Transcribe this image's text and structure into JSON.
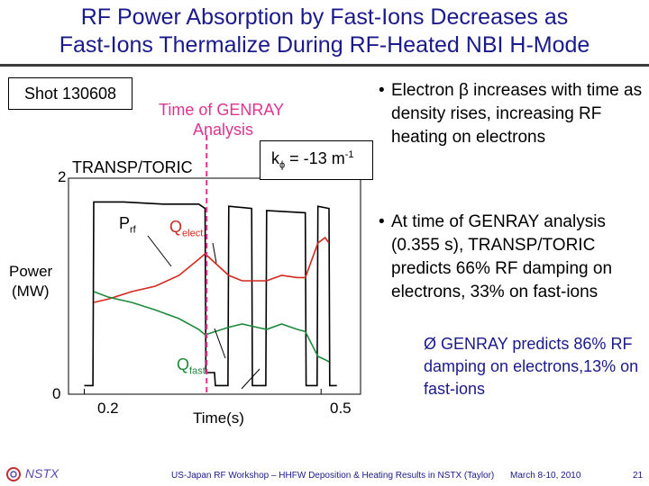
{
  "slide": {
    "title_line1": "RF Power Absorption by Fast-Ions Decreases as",
    "title_line2": "Fast-Ions Thermalize During RF-Heated NBI H-Mode",
    "shot_label": "Shot 130608",
    "genray_time_label_1": "Time of GENRAY",
    "genray_time_label_2": "Analysis",
    "transp_label": "TRANSP/TORIC",
    "k_label_k": "k",
    "k_label_phi": "ϕ",
    "k_label_value": " = -13 m",
    "k_label_exp": "-1",
    "prf_label": "P",
    "prf_sub": "rf",
    "qelect_label": "Q",
    "qelect_sub": "elect.",
    "qfast_label": "Q",
    "qfast_sub": "fast",
    "power_label_1": "Power",
    "power_label_2": "(MW)",
    "y_tick_top": "2",
    "y_tick_bottom": "0",
    "x_tick_left": "0.2",
    "x_tick_right": "0.5",
    "x_axis_label": "Time(s)",
    "bullet1_marker": "•",
    "bullet1": "Electron β increases with time as density rises, increasing RF heating on electrons",
    "bullet2_marker": "•",
    "bullet2": "At time of GENRAY analysis (0.355 s), TRANSP/TORIC predicts 66% RF damping on electrons, 33% on fast-ions",
    "bullet3_marker": "Ø",
    "bullet3": "GENRAY predicts 86% RF damping on electrons,13% on fast-ions",
    "footer_logo": "NSTX",
    "footer_center": "US-Japan RF Workshop – HHFW Deposition & Heating Results in NSTX (Taylor)",
    "footer_date": "March 8-10, 2010",
    "footer_page": "21"
  },
  "colors": {
    "title": "#1a1a8c",
    "prf": "#000000",
    "qelect": "#d2281e",
    "qfast": "#1f8a3c",
    "genray_marker": "#e0338f"
  },
  "chart_data": {
    "type": "line",
    "xlabel": "Time(s)",
    "ylabel": "Power (MW)",
    "xlim": [
      0.18,
      0.55
    ],
    "ylim": [
      0,
      2
    ],
    "x_ticks": [
      0.2,
      0.5
    ],
    "y_ticks": [
      0,
      2
    ],
    "genray_time": 0.355,
    "series": [
      {
        "name": "Prf",
        "color": "#000000",
        "x": [
          0.2,
          0.211,
          0.212,
          0.25,
          0.3,
          0.345,
          0.353,
          0.354,
          0.365,
          0.366,
          0.382,
          0.383,
          0.412,
          0.413,
          0.43,
          0.431,
          0.48,
          0.481,
          0.495,
          0.496,
          0.51,
          0.511,
          0.52
        ],
        "y": [
          0.08,
          0.08,
          1.78,
          1.78,
          1.76,
          1.76,
          1.72,
          0.2,
          0.2,
          0.08,
          0.08,
          1.74,
          1.72,
          0.08,
          0.08,
          1.7,
          1.68,
          0.08,
          0.08,
          1.74,
          1.72,
          0.08,
          0.08
        ]
      },
      {
        "name": "Qelect.",
        "color": "#d2281e",
        "x": [
          0.212,
          0.23,
          0.26,
          0.29,
          0.32,
          0.345,
          0.353,
          0.383,
          0.4,
          0.412,
          0.431,
          0.45,
          0.47,
          0.48,
          0.496,
          0.505,
          0.51
        ],
        "y": [
          0.85,
          0.88,
          0.95,
          1.0,
          1.1,
          1.25,
          1.3,
          1.1,
          1.05,
          1.05,
          1.05,
          1.1,
          1.08,
          1.08,
          1.4,
          1.45,
          1.4
        ]
      },
      {
        "name": "Qfast",
        "color": "#1f8a3c",
        "x": [
          0.212,
          0.23,
          0.26,
          0.29,
          0.32,
          0.345,
          0.353,
          0.383,
          0.4,
          0.412,
          0.431,
          0.45,
          0.47,
          0.48,
          0.496,
          0.505,
          0.51
        ],
        "y": [
          0.95,
          0.9,
          0.85,
          0.78,
          0.7,
          0.6,
          0.55,
          0.62,
          0.65,
          0.63,
          0.6,
          0.65,
          0.6,
          0.58,
          0.35,
          0.32,
          0.3
        ]
      }
    ]
  }
}
